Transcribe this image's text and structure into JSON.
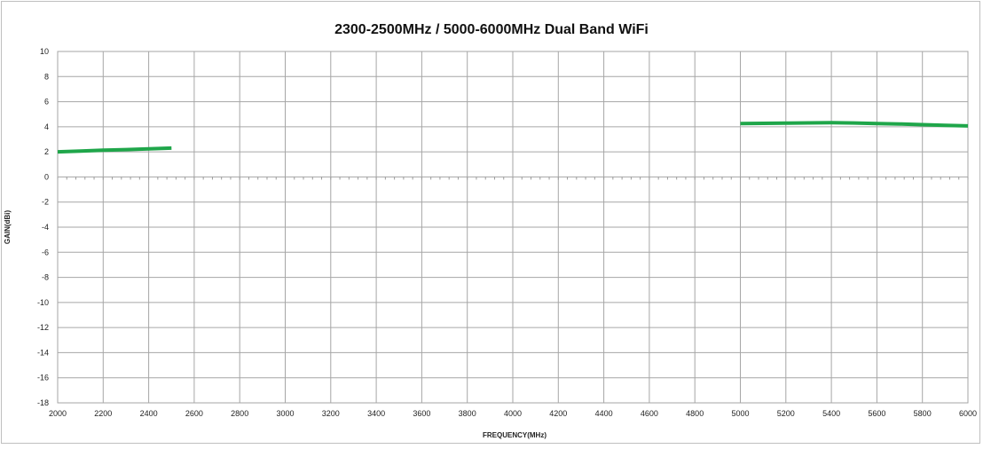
{
  "chart_data": {
    "type": "line",
    "title": "2300-2500MHz / 5000-6000MHz Dual Band WiFi",
    "xlabel": "FREQUENCY(MHz)",
    "ylabel": "GAIN(dBi)",
    "xlim": [
      2000,
      6000
    ],
    "ylim": [
      -18,
      10
    ],
    "xticks": [
      2000,
      2200,
      2400,
      2600,
      2800,
      3000,
      3200,
      3400,
      3600,
      3800,
      4000,
      4200,
      4400,
      4600,
      4800,
      5000,
      5200,
      5400,
      5600,
      5800,
      6000
    ],
    "yticks": [
      10,
      8,
      6,
      4,
      2,
      0,
      -2,
      -4,
      -6,
      -8,
      -10,
      -12,
      -14,
      -16,
      -18
    ],
    "grid": true,
    "legend": "none",
    "line_color": "#1fa64a",
    "series": [
      {
        "x": [
          2000,
          2100,
          2200,
          2300,
          2400,
          2500
        ],
        "y": [
          2.0,
          2.07,
          2.13,
          2.18,
          2.24,
          2.3
        ]
      },
      {
        "x": [
          5000,
          5100,
          5200,
          5300,
          5400,
          5500,
          5600,
          5700,
          5800,
          5900,
          6000
        ],
        "y": [
          4.25,
          4.27,
          4.29,
          4.31,
          4.32,
          4.3,
          4.26,
          4.22,
          4.17,
          4.12,
          4.07
        ]
      }
    ]
  }
}
